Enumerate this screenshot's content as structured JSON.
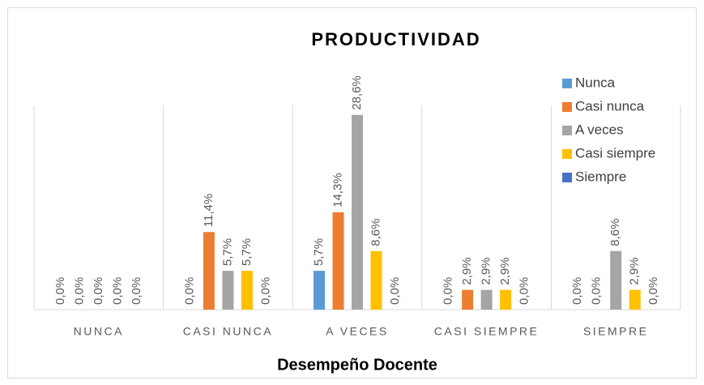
{
  "chart_data": {
    "type": "bar",
    "title": "PRODUCTIVIDAD",
    "x_label": "Desempeño Docente",
    "categories": [
      "NUNCA",
      "CASI NUNCA",
      "A VECES",
      "CASI SIEMPRE",
      "SIEMPRE"
    ],
    "series": [
      {
        "name": "Nunca",
        "color": "#5b9bd5",
        "values": [
          0,
          0,
          5.7,
          0,
          0
        ],
        "value_labels": [
          "0,0%",
          "0,0%",
          "5,7%",
          "0,0%",
          "0,0%"
        ]
      },
      {
        "name": "Casi nunca",
        "color": "#ed7d31",
        "values": [
          0,
          11.4,
          14.3,
          2.9,
          0
        ],
        "value_labels": [
          "0,0%",
          "11,4%",
          "14,3%",
          "2,9%",
          "0,0%"
        ]
      },
      {
        "name": "A veces",
        "color": "#a5a5a5",
        "values": [
          0,
          5.7,
          28.6,
          2.9,
          8.6
        ],
        "value_labels": [
          "0,0%",
          "5,7%",
          "28,6%",
          "2,9%",
          "8,6%"
        ]
      },
      {
        "name": "Casi siempre",
        "color": "#ffc000",
        "values": [
          0,
          5.7,
          8.6,
          2.9,
          2.9
        ],
        "value_labels": [
          "0,0%",
          "5,7%",
          "8,6%",
          "2,9%",
          "2,9%"
        ]
      },
      {
        "name": "Siempre",
        "color": "#4472c4",
        "values": [
          0,
          0,
          0,
          0,
          0
        ],
        "value_labels": [
          "0,0%",
          "0,0%",
          "0,0%",
          "0,0%",
          "0,0%"
        ]
      }
    ],
    "ylim": [
      0,
      30
    ],
    "legend": "top-right"
  }
}
